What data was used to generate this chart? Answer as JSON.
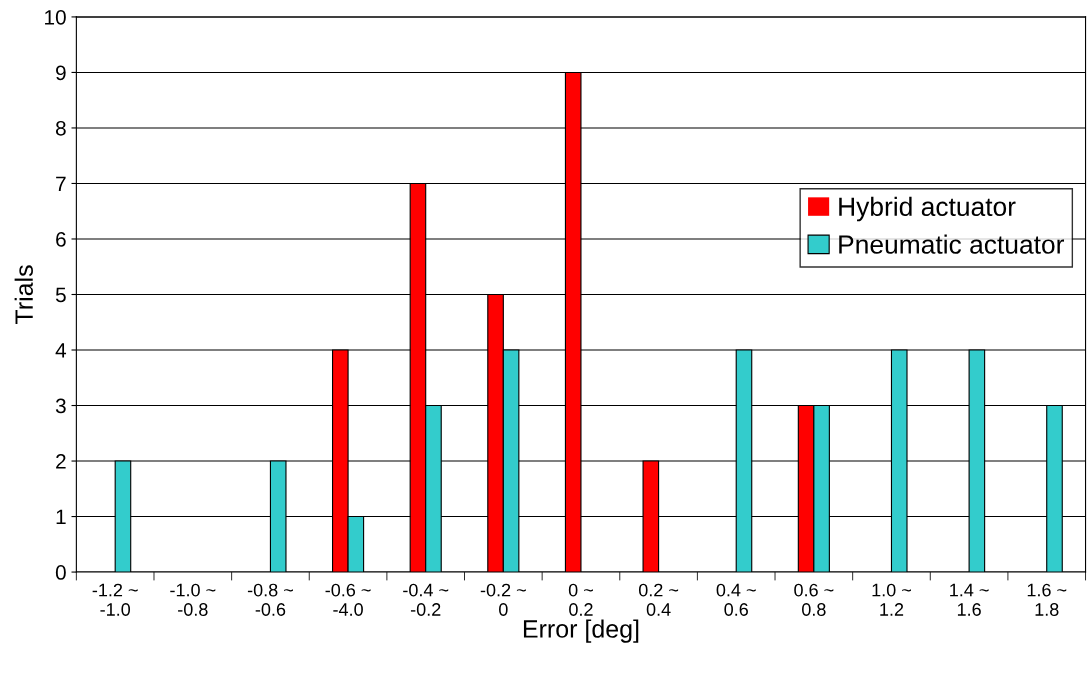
{
  "chart_data": {
    "type": "bar",
    "xlabel": "Error [deg]",
    "ylabel": "Trials",
    "categories": [
      "-1.2 ~\n-1.0",
      "-1.0 ~\n-0.8",
      "-0.8 ~\n-0.6",
      "-0.6 ~\n-4.0",
      "-0.4 ~\n-0.2",
      "-0.2 ~\n0",
      "0 ~\n0.2",
      "0.2 ~\n0.4",
      "0.4 ~\n0.6",
      "0.6 ~\n0.8",
      "1.0 ~\n1.2",
      "1.4 ~\n1.6",
      "1.6 ~\n1.8"
    ],
    "series": [
      {
        "name": "Hybrid actuator",
        "color": "#ff0000",
        "values": [
          0,
          0,
          0,
          4,
          7,
          5,
          9,
          2,
          0,
          3,
          0,
          0,
          0
        ]
      },
      {
        "name": "Pneumatic actuator",
        "color": "#33cccc",
        "values": [
          2,
          0,
          2,
          1,
          3,
          4,
          0,
          0,
          4,
          3,
          4,
          4,
          3
        ]
      }
    ],
    "ylim": [
      0,
      10
    ],
    "yticks": [
      0,
      1,
      2,
      3,
      4,
      5,
      6,
      7,
      8,
      9,
      10
    ],
    "grid": "y",
    "legend": "right"
  }
}
